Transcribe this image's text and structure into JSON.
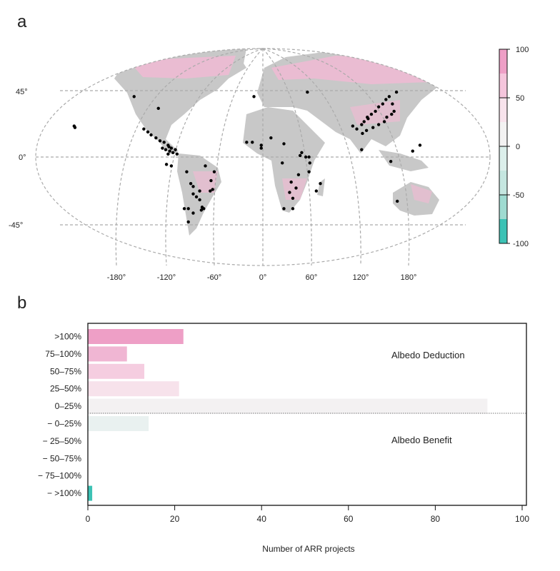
{
  "chart_data": [
    {
      "panel_label": "a",
      "type": "scatter",
      "subtype": "world map with project locations over a gridded colour field",
      "lat_tick_labels": [
        "45°",
        "0°",
        "-45°"
      ],
      "lat_ticks": [
        45,
        0,
        -45
      ],
      "lon_tick_labels": [
        "-180°",
        "-120°",
        "-60°",
        "0°",
        "60°",
        "120°",
        "180°"
      ],
      "lon_ticks": [
        -180,
        -120,
        -60,
        0,
        60,
        120,
        180
      ],
      "grid": true,
      "colorbar": {
        "range": [
          -100,
          100
        ],
        "tick_labels": [
          "100",
          "50",
          "0",
          "-50",
          "-100"
        ],
        "ticks": [
          100,
          50,
          0,
          -50,
          -100
        ],
        "bins": [
          {
            "from": 75,
            "to": 100,
            "color": "#ee9fc6"
          },
          {
            "from": 50,
            "to": 75,
            "color": "#f5c5dc"
          },
          {
            "from": 25,
            "to": 50,
            "color": "#f8e3ec"
          },
          {
            "from": 0,
            "to": 25,
            "color": "#f3f2f2"
          },
          {
            "from": -25,
            "to": 0,
            "color": "#dcefeb"
          },
          {
            "from": -50,
            "to": -25,
            "color": "#c5e6e0"
          },
          {
            "from": -75,
            "to": -50,
            "color": "#9fdbd1"
          },
          {
            "from": -100,
            "to": -75,
            "color": "#3cc2b5"
          }
        ]
      },
      "land_color": "#c8c8c8",
      "point_color": "#000000",
      "points_lonlat": [
        [
          -233,
          21
        ],
        [
          -232,
          20
        ],
        [
          -159,
          41
        ],
        [
          -129,
          33
        ],
        [
          -147,
          19
        ],
        [
          -142,
          17
        ],
        [
          -138,
          15
        ],
        [
          -132,
          13
        ],
        [
          -127,
          11
        ],
        [
          -122,
          10
        ],
        [
          -116,
          7
        ],
        [
          -120,
          5
        ],
        [
          -115,
          4
        ],
        [
          -124,
          6
        ],
        [
          -113,
          6
        ],
        [
          -108,
          5
        ],
        [
          -111,
          3
        ],
        [
          -117,
          2
        ],
        [
          -106,
          2
        ],
        [
          -119,
          -5
        ],
        [
          -113,
          -6
        ],
        [
          -117,
          8
        ],
        [
          -94,
          -10
        ],
        [
          -86,
          -20
        ],
        [
          -71,
          -6
        ],
        [
          -86,
          -25
        ],
        [
          -82,
          -27
        ],
        [
          -78,
          -23
        ],
        [
          -78,
          -29
        ],
        [
          -75,
          -34
        ],
        [
          -73,
          -35
        ],
        [
          -76,
          -36
        ],
        [
          -92,
          -35
        ],
        [
          -97,
          -35
        ],
        [
          -86,
          -38
        ],
        [
          -92,
          -44
        ],
        [
          -65,
          -23
        ],
        [
          -64,
          -16
        ],
        [
          -60,
          -10
        ],
        [
          -62,
          -22
        ],
        [
          -89,
          -18
        ],
        [
          -11,
          41
        ],
        [
          10,
          13
        ],
        [
          -20,
          10
        ],
        [
          -13,
          10
        ],
        [
          -2,
          8
        ],
        [
          -2,
          6
        ],
        [
          26,
          9
        ],
        [
          24,
          -4
        ],
        [
          46,
          1
        ],
        [
          48,
          3
        ],
        [
          53,
          0
        ],
        [
          57,
          0
        ],
        [
          44,
          -12
        ],
        [
          57,
          -10
        ],
        [
          58,
          -4
        ],
        [
          35,
          -17
        ],
        [
          41,
          -21
        ],
        [
          33,
          -24
        ],
        [
          37,
          -28
        ],
        [
          26,
          -35
        ],
        [
          37,
          -35
        ],
        [
          71,
          -18
        ],
        [
          66,
          -23
        ],
        [
          55,
          44
        ],
        [
          111,
          21
        ],
        [
          116,
          19
        ],
        [
          122,
          22
        ],
        [
          125,
          24
        ],
        [
          129,
          27
        ],
        [
          134,
          29
        ],
        [
          139,
          31
        ],
        [
          143,
          34
        ],
        [
          148,
          36
        ],
        [
          152,
          39
        ],
        [
          156,
          41
        ],
        [
          160,
          36
        ],
        [
          159,
          29
        ],
        [
          153,
          27
        ],
        [
          150,
          24
        ],
        [
          143,
          22
        ],
        [
          136,
          20
        ],
        [
          128,
          18
        ],
        [
          123,
          16
        ],
        [
          130,
          26
        ],
        [
          162,
          31
        ],
        [
          165,
          44
        ],
        [
          122,
          5
        ],
        [
          158,
          -3
        ],
        [
          185,
          4
        ],
        [
          194,
          8
        ],
        [
          166,
          -30
        ]
      ]
    },
    {
      "panel_label": "b",
      "type": "bar",
      "orientation": "horizontal",
      "categories": [
        ">100%",
        "75–100%",
        "50–75%",
        "25–50%",
        "0–25%",
        "− 0–25%",
        "− 25–50%",
        "− 50–75%",
        "− 75–100%",
        "− >100%"
      ],
      "values": [
        22,
        9,
        13,
        21,
        92,
        14,
        0,
        0,
        0,
        1
      ],
      "colors": [
        "#ee9fc6",
        "#f0b6d3",
        "#f5cde0",
        "#f7e2eb",
        "#f3f1f2",
        "#e9f1f0",
        "#dcefeb",
        "#c5e6e0",
        "#9fdbd1",
        "#3cc2b5"
      ],
      "xlabel": "Number of ARR projects",
      "ylabel": "",
      "xlim": [
        0,
        100
      ],
      "x_tick_labels": [
        "0",
        "20",
        "40",
        "60",
        "80",
        "100"
      ],
      "x_ticks": [
        0,
        20,
        40,
        60,
        80,
        100
      ],
      "annotations": [
        "Albedo Deduction",
        "Albedo Benefit"
      ],
      "divider": "dotted line between 0–25% and − 0–25%",
      "grid": false
    }
  ]
}
